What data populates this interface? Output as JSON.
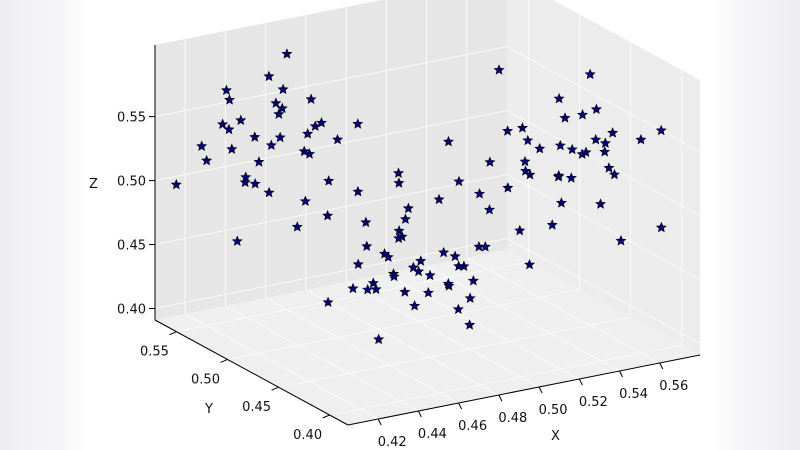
{
  "chart_data": {
    "type": "scatter",
    "projection": "3d",
    "marker": "star",
    "marker_color": "#000080",
    "marker_edge": "#000000",
    "panel_color": "#e9e9e9",
    "xlabel": "X",
    "ylabel": "Y",
    "zlabel": "Z",
    "xlim": [
      0.405,
      0.58
    ],
    "ylim": [
      0.382,
      0.571
    ],
    "zlim": [
      0.391,
      0.606
    ],
    "xticks": [
      "0.42",
      "0.44",
      "0.46",
      "0.48",
      "0.50",
      "0.52",
      "0.54",
      "0.56"
    ],
    "yticks": [
      "0.40",
      "0.45",
      "0.50",
      "0.55"
    ],
    "zticks": [
      "0.40",
      "0.45",
      "0.50",
      "0.55"
    ],
    "grid": true,
    "points": [
      [
        0.452,
        0.541,
        0.532
      ],
      [
        0.438,
        0.552,
        0.545
      ],
      [
        0.461,
        0.53,
        0.521
      ],
      [
        0.445,
        0.548,
        0.512
      ],
      [
        0.47,
        0.536,
        0.54
      ],
      [
        0.43,
        0.545,
        0.528
      ],
      [
        0.458,
        0.557,
        0.55
      ],
      [
        0.441,
        0.528,
        0.535
      ],
      [
        0.466,
        0.545,
        0.515
      ],
      [
        0.449,
        0.56,
        0.525
      ],
      [
        0.425,
        0.538,
        0.548
      ],
      [
        0.474,
        0.55,
        0.53
      ],
      [
        0.435,
        0.532,
        0.505
      ],
      [
        0.455,
        0.52,
        0.543
      ],
      [
        0.462,
        0.562,
        0.538
      ],
      [
        0.442,
        0.555,
        0.498
      ],
      [
        0.42,
        0.55,
        0.52
      ],
      [
        0.48,
        0.54,
        0.522
      ],
      [
        0.45,
        0.535,
        0.558
      ],
      [
        0.433,
        0.56,
        0.54
      ],
      [
        0.468,
        0.525,
        0.5
      ],
      [
        0.457,
        0.548,
        0.565
      ],
      [
        0.428,
        0.528,
        0.51
      ],
      [
        0.476,
        0.558,
        0.547
      ],
      [
        0.447,
        0.542,
        0.49
      ],
      [
        0.415,
        0.545,
        0.535
      ],
      [
        0.485,
        0.53,
        0.537
      ],
      [
        0.439,
        0.565,
        0.555
      ],
      [
        0.463,
        0.538,
        0.48
      ],
      [
        0.452,
        0.552,
        0.575
      ],
      [
        0.552,
        0.452,
        0.53
      ],
      [
        0.54,
        0.44,
        0.542
      ],
      [
        0.561,
        0.46,
        0.52
      ],
      [
        0.548,
        0.445,
        0.512
      ],
      [
        0.535,
        0.462,
        0.538
      ],
      [
        0.565,
        0.438,
        0.545
      ],
      [
        0.545,
        0.47,
        0.525
      ],
      [
        0.558,
        0.432,
        0.535
      ],
      [
        0.53,
        0.45,
        0.518
      ],
      [
        0.57,
        0.455,
        0.528
      ],
      [
        0.55,
        0.425,
        0.55
      ],
      [
        0.542,
        0.478,
        0.505
      ],
      [
        0.562,
        0.448,
        0.56
      ],
      [
        0.538,
        0.435,
        0.5
      ],
      [
        0.555,
        0.465,
        0.548
      ],
      [
        0.525,
        0.445,
        0.532
      ],
      [
        0.568,
        0.47,
        0.515
      ],
      [
        0.547,
        0.455,
        0.57
      ],
      [
        0.533,
        0.428,
        0.525
      ],
      [
        0.56,
        0.44,
        0.49
      ],
      [
        0.575,
        0.43,
        0.54
      ],
      [
        0.528,
        0.468,
        0.545
      ],
      [
        0.553,
        0.418,
        0.53
      ],
      [
        0.544,
        0.485,
        0.535
      ],
      [
        0.52,
        0.452,
        0.51
      ],
      [
        0.566,
        0.462,
        0.58
      ],
      [
        0.537,
        0.442,
        0.48
      ],
      [
        0.557,
        0.475,
        0.498
      ],
      [
        0.549,
        0.436,
        0.565
      ],
      [
        0.572,
        0.45,
        0.505
      ],
      [
        0.5,
        0.5,
        0.43
      ],
      [
        0.49,
        0.51,
        0.44
      ],
      [
        0.51,
        0.49,
        0.42
      ],
      [
        0.495,
        0.488,
        0.445
      ],
      [
        0.505,
        0.515,
        0.425
      ],
      [
        0.485,
        0.495,
        0.435
      ],
      [
        0.515,
        0.505,
        0.438
      ],
      [
        0.498,
        0.52,
        0.418
      ],
      [
        0.508,
        0.48,
        0.448
      ],
      [
        0.48,
        0.505,
        0.425
      ],
      [
        0.52,
        0.495,
        0.43
      ],
      [
        0.493,
        0.475,
        0.44
      ],
      [
        0.503,
        0.525,
        0.45
      ],
      [
        0.488,
        0.518,
        0.412
      ],
      [
        0.512,
        0.47,
        0.432
      ],
      [
        0.478,
        0.49,
        0.455
      ],
      [
        0.525,
        0.51,
        0.422
      ],
      [
        0.497,
        0.498,
        0.405
      ],
      [
        0.507,
        0.53,
        0.442
      ],
      [
        0.483,
        0.48,
        0.428
      ],
      [
        0.518,
        0.485,
        0.41
      ],
      [
        0.492,
        0.535,
        0.437
      ],
      [
        0.47,
        0.5,
        0.445
      ],
      [
        0.53,
        0.5,
        0.44
      ],
      [
        0.502,
        0.465,
        0.415
      ],
      [
        0.488,
        0.528,
        0.46
      ],
      [
        0.515,
        0.52,
        0.4
      ],
      [
        0.475,
        0.515,
        0.418
      ],
      [
        0.522,
        0.478,
        0.452
      ],
      [
        0.496,
        0.505,
        0.47
      ],
      [
        0.48,
        0.52,
        0.49
      ],
      [
        0.5,
        0.48,
        0.495
      ],
      [
        0.47,
        0.53,
        0.47
      ],
      [
        0.52,
        0.47,
        0.485
      ],
      [
        0.49,
        0.5,
        0.51
      ],
      [
        0.51,
        0.46,
        0.505
      ],
      [
        0.46,
        0.54,
        0.46
      ],
      [
        0.53,
        0.46,
        0.47
      ],
      [
        0.5,
        0.51,
        0.475
      ],
      [
        0.485,
        0.49,
        0.465
      ],
      [
        0.515,
        0.49,
        0.5
      ],
      [
        0.475,
        0.47,
        0.52
      ],
      [
        0.525,
        0.52,
        0.515
      ],
      [
        0.44,
        0.57,
        0.56
      ],
      [
        0.41,
        0.56,
        0.5
      ],
      [
        0.58,
        0.42,
        0.55
      ],
      [
        0.575,
        0.41,
        0.48
      ],
      [
        0.47,
        0.48,
        0.395
      ],
      [
        0.53,
        0.53,
        0.398
      ],
      [
        0.495,
        0.54,
        0.4
      ],
      [
        0.455,
        0.5,
        0.42
      ],
      [
        0.545,
        0.48,
        0.43
      ],
      [
        0.505,
        0.44,
        0.54
      ],
      [
        0.465,
        0.56,
        0.585
      ],
      [
        0.54,
        0.5,
        0.575
      ],
      [
        0.42,
        0.52,
        0.47
      ],
      [
        0.56,
        0.42,
        0.47
      ],
      [
        0.5,
        0.45,
        0.41
      ]
    ]
  }
}
